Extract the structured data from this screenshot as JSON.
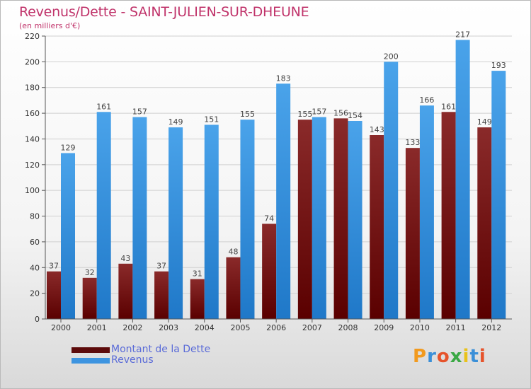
{
  "title": "Revenus/Dette - SAINT-JULIEN-SUR-DHEUNE",
  "subtitle": "(en milliers d'€)",
  "colors": {
    "debt": "#7a1c1c",
    "revenue": "#3d94e0",
    "title": "#c0336a",
    "legend_text": "#5a6bd8"
  },
  "legend": [
    {
      "label": "Montant de la Dette",
      "color": "#5c0a0a"
    },
    {
      "label": "Revenus",
      "color": "#3d94e0"
    }
  ],
  "logo": {
    "letters": [
      "P",
      "r",
      "o",
      "x",
      "i",
      "t",
      "i"
    ],
    "colors": [
      "#f29a1e",
      "#3a8fd8",
      "#e6532b",
      "#3aa844",
      "#e9c21a",
      "#3a8fd8",
      "#e6532b"
    ]
  },
  "chart_data": {
    "type": "bar",
    "title": "Revenus/Dette - SAINT-JULIEN-SUR-DHEUNE",
    "ylabel": "(en milliers d'€)",
    "categories": [
      "2000",
      "2001",
      "2002",
      "2003",
      "2004",
      "2005",
      "2006",
      "2007",
      "2008",
      "2009",
      "2010",
      "2011",
      "2012"
    ],
    "series": [
      {
        "name": "Montant de la Dette",
        "values": [
          37,
          32,
          43,
          37,
          31,
          48,
          74,
          155,
          156,
          143,
          133,
          161,
          149
        ]
      },
      {
        "name": "Revenus",
        "values": [
          129,
          161,
          157,
          149,
          151,
          155,
          183,
          157,
          154,
          200,
          166,
          217,
          193
        ]
      }
    ],
    "ylim": [
      0,
      220
    ],
    "yticks": [
      0,
      20,
      40,
      60,
      80,
      100,
      120,
      140,
      160,
      180,
      200,
      220
    ],
    "grid": true,
    "legend_position": "bottom-left"
  }
}
